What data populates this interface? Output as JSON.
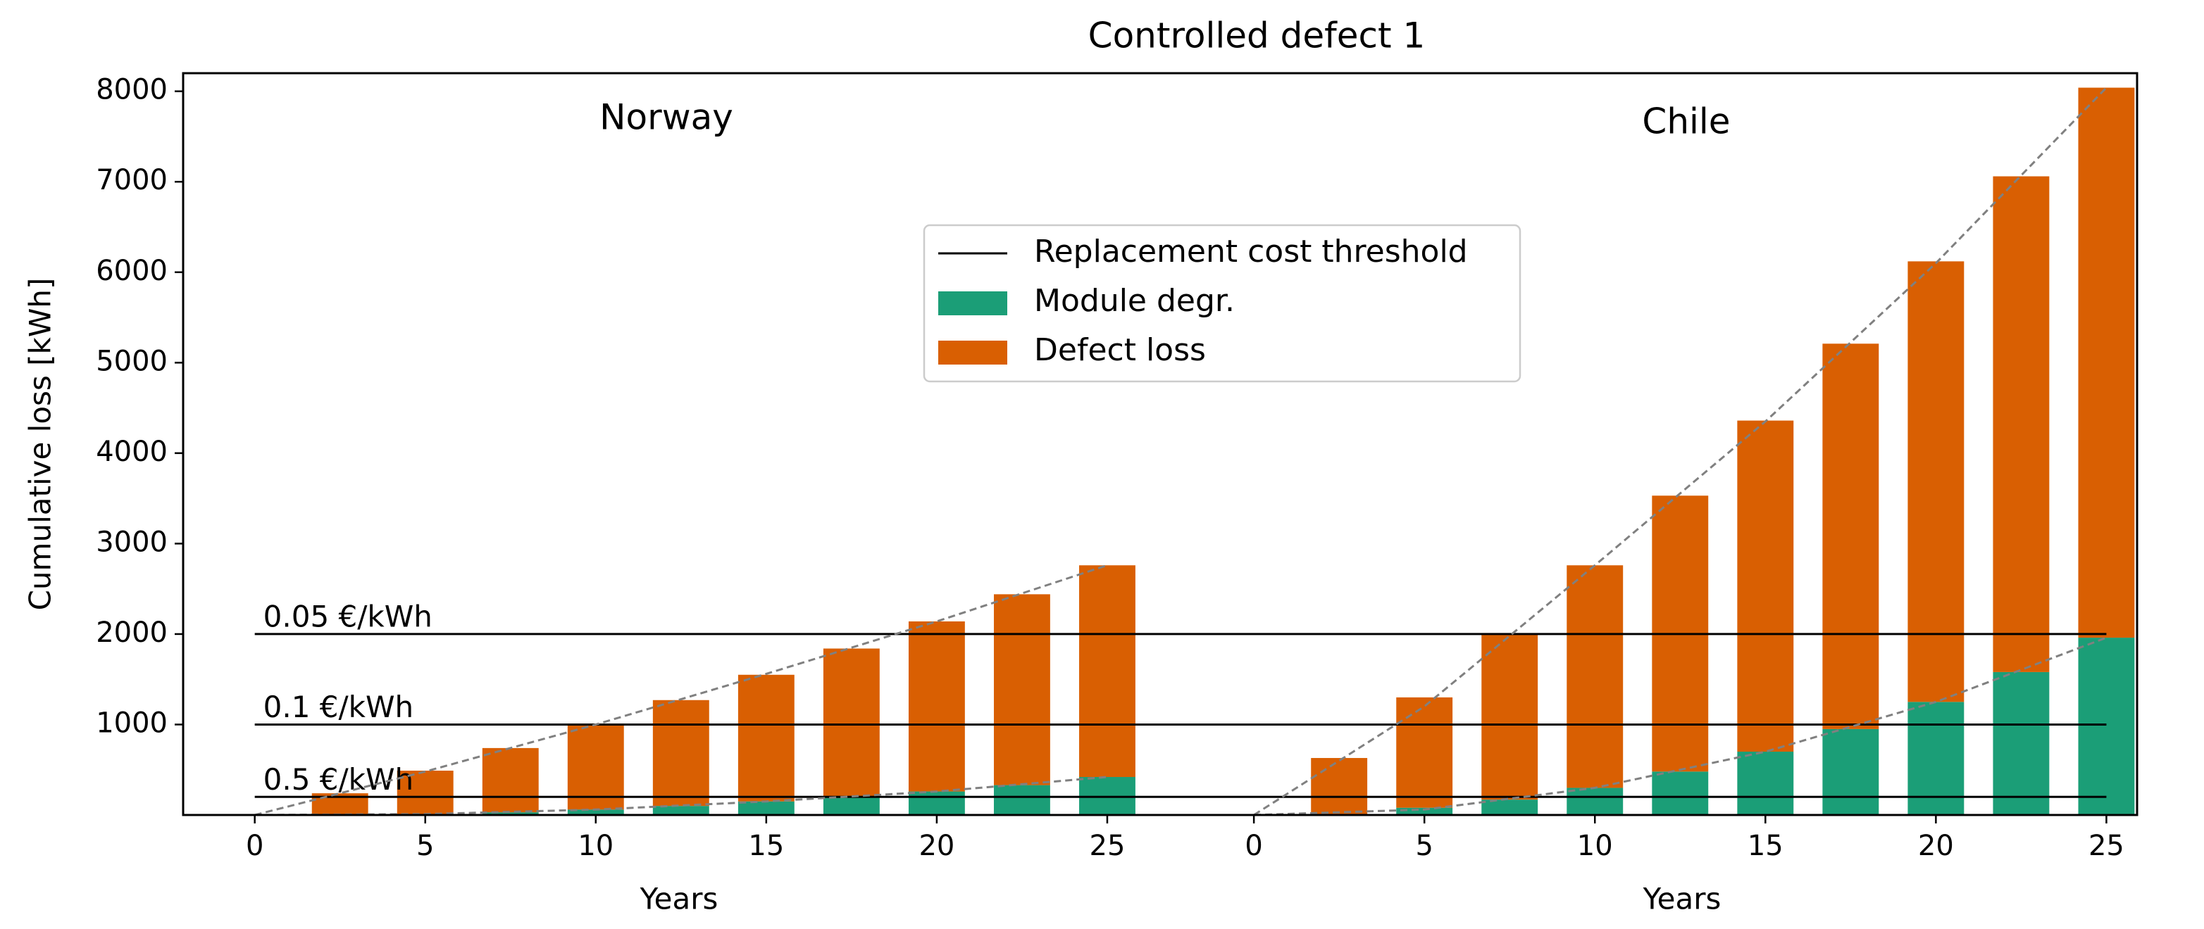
{
  "chart_data": {
    "type": "bar",
    "title": "Controlled defect 1",
    "ylabel": "Cumulative loss [kWh]",
    "panels": [
      {
        "label": "Norway",
        "xlabel": "Years"
      },
      {
        "label": "Chile",
        "xlabel": "Years"
      }
    ],
    "x": [
      2.5,
      5,
      7.5,
      10,
      12.5,
      15,
      17.5,
      20,
      22.5,
      25,
      31.8,
      34.3,
      36.8,
      39.3,
      41.8,
      44.3,
      46.8,
      49.3,
      51.8,
      54.3
    ],
    "series": [
      {
        "name": "Module degr.",
        "color": "#1b9e77",
        "values": [
          0,
          10,
          30,
          60,
          100,
          150,
          200,
          260,
          330,
          420,
          0,
          80,
          170,
          300,
          480,
          700,
          950,
          1250,
          1580,
          1960
        ]
      },
      {
        "name": "Defect loss",
        "color": "#d95f02",
        "values": [
          240,
          480,
          710,
          940,
          1170,
          1400,
          1640,
          1880,
          2110,
          2340,
          630,
          1220,
          1830,
          2460,
          3050,
          3660,
          4260,
          4870,
          5480,
          6080
        ]
      }
    ],
    "thresholds": {
      "name": "Replacement cost threshold",
      "color": "#000000",
      "span": [
        0,
        54.3
      ],
      "values": [
        2000,
        1000,
        200
      ],
      "value_labels": [
        "0.05 €/kWh",
        "0.1 €/kWh",
        "0.5 €/kWh"
      ]
    },
    "trends": [
      {
        "color": "#808080",
        "x": [
          0,
          5,
          10,
          15,
          20,
          25
        ],
        "values": [
          0,
          480,
          1000,
          1560,
          2140,
          2760
        ]
      },
      {
        "color": "#808080",
        "x": [
          0,
          5,
          10,
          15,
          20,
          25
        ],
        "values": [
          0,
          10,
          60,
          150,
          260,
          420
        ]
      },
      {
        "color": "#808080",
        "x": [
          29.3,
          34.3,
          39.3,
          44.3,
          49.3,
          54.3
        ],
        "values": [
          0,
          1200,
          2760,
          4350,
          6100,
          8040
        ]
      },
      {
        "color": "#808080",
        "x": [
          29.3,
          34.3,
          39.3,
          44.3,
          49.3,
          54.3
        ],
        "values": [
          0,
          60,
          300,
          700,
          1250,
          1960
        ]
      }
    ],
    "bar_width": 1.65,
    "xlim": [
      -2.1,
      55.2
    ],
    "xticks": [
      0,
      5,
      10,
      15,
      20,
      25,
      {
        "value": 29.3,
        "label": "0"
      },
      {
        "value": 34.3,
        "label": "5"
      },
      {
        "value": 39.3,
        "label": "10"
      },
      {
        "value": 44.3,
        "label": "15"
      },
      {
        "value": 49.3,
        "label": "20"
      },
      {
        "value": 54.3,
        "label": "25"
      }
    ],
    "ylim": [
      0,
      8200
    ],
    "yticks": [
      1000,
      2000,
      3000,
      4000,
      5000,
      6000,
      7000,
      8000
    ],
    "legend": "upper center"
  }
}
